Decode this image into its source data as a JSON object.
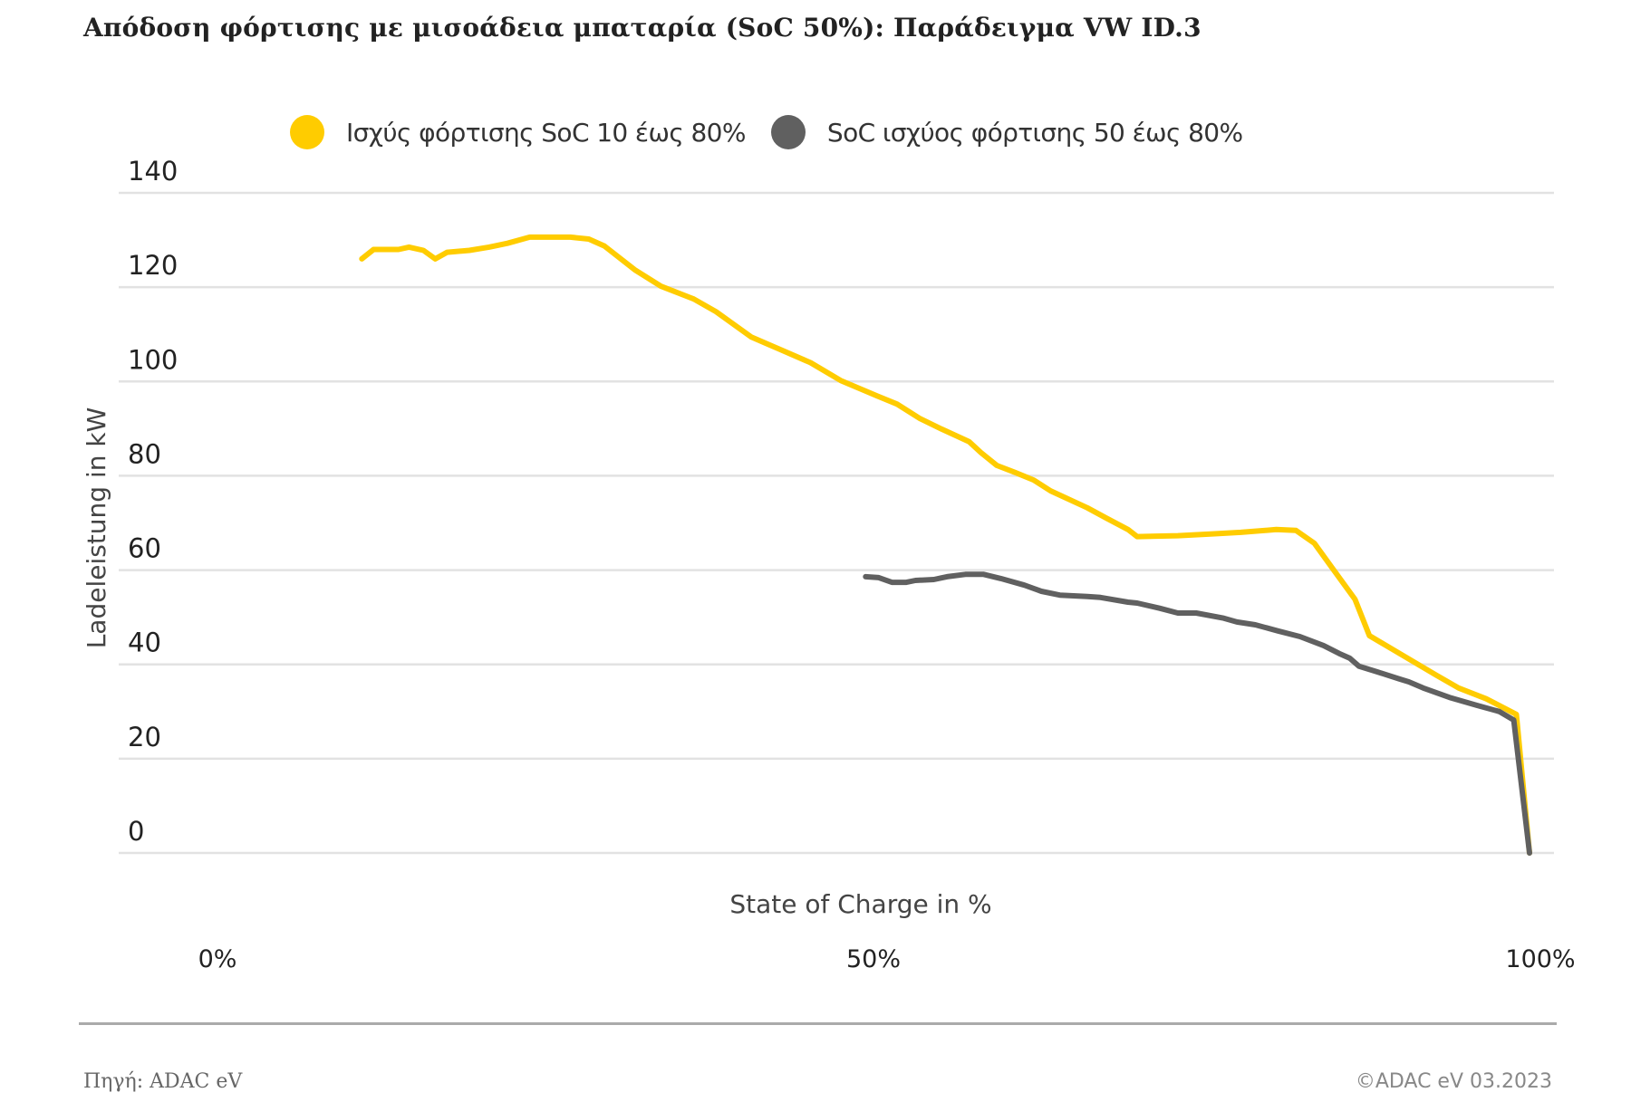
{
  "chart_data": {
    "type": "line",
    "title": "Απόδοση φόρτισης με μισοάδεια μπαταρία (SoC 50%): Παράδειγμα VW ID.3",
    "xlabel": "State of Charge in %",
    "ylabel": "Ladeleistung in kW",
    "xlim": [
      0,
      100
    ],
    "ylim": [
      0,
      140
    ],
    "yticks": [
      0,
      20,
      40,
      60,
      80,
      100,
      120,
      140
    ],
    "ytick_labels": [
      "0",
      "20",
      "40",
      "60",
      "80",
      "100",
      "120",
      "140"
    ],
    "xticks": [
      0,
      50,
      100
    ],
    "xtick_labels": [
      "0%",
      "50%",
      "100%"
    ],
    "grid": "horizontal",
    "legend_position": "top",
    "series": [
      {
        "name": "Ισχύς φόρτισης SoC 10 έως 80%",
        "color": "#FFCC00",
        "x": [
          11,
          11.9,
          13.8,
          14.6,
          15.7,
          16.6,
          17.5,
          19.2,
          20.7,
          22.1,
          23.8,
          26.9,
          28.3,
          29.5,
          31.8,
          33.8,
          36.3,
          38,
          40.7,
          42.8,
          45.2,
          47.5,
          50.3,
          51.8,
          53.5,
          55.2,
          57,
          57.3,
          58.2,
          59.4,
          60.8,
          62.2,
          63.5,
          66.3,
          67.7,
          69.4,
          70.1,
          73.2,
          76,
          78,
          80.7,
          82.2,
          83.6,
          85,
          86.7,
          87.8,
          90.1,
          92.9,
          94.6,
          96.7,
          99,
          100
        ],
        "y": [
          126,
          128,
          128,
          128.5,
          127.8,
          126,
          127.4,
          127.8,
          128.5,
          129.3,
          130.6,
          130.6,
          130.2,
          128.7,
          123.7,
          120.2,
          117.5,
          114.8,
          109.4,
          106.9,
          104,
          100.2,
          96.9,
          95.2,
          92.2,
          89.9,
          87.6,
          87.2,
          84.9,
          82.2,
          80.7,
          79.1,
          76.8,
          73.2,
          71.1,
          68.6,
          67.1,
          67.3,
          67.7,
          68,
          68.6,
          68.4,
          65.7,
          60.3,
          53.8,
          46.1,
          42.3,
          37.7,
          35,
          32.7,
          29.4,
          0
        ]
      },
      {
        "name": "SoC ισχύος φόρτισης 50 έως 80%",
        "color": "#606060",
        "x": [
          49.4,
          50.4,
          51.4,
          52.5,
          53.2,
          54.6,
          55.6,
          57,
          58.4,
          59.7,
          61.5,
          62.8,
          64.2,
          66.3,
          67.3,
          69.4,
          70.1,
          71.8,
          73.2,
          74.6,
          76.7,
          77.7,
          79.1,
          80.8,
          82.5,
          84.3,
          85.5,
          86.3,
          87,
          88.4,
          90.1,
          90.8,
          91.9,
          93.9,
          96,
          97.7,
          98.8,
          100
        ],
        "y": [
          58.6,
          58.4,
          57.4,
          57.4,
          57.8,
          58,
          58.6,
          59.1,
          59.1,
          58.2,
          56.8,
          55.5,
          54.7,
          54.4,
          54.2,
          53.2,
          53,
          51.9,
          50.9,
          50.9,
          49.8,
          49,
          48.4,
          47.1,
          45.9,
          44,
          42.3,
          41.3,
          39.6,
          38.4,
          36.9,
          36.3,
          35,
          33,
          31.3,
          30,
          28.2,
          0
        ]
      }
    ]
  },
  "legend": {
    "items": [
      {
        "label": "Ισχύς φόρτισης SoC 10 έως 80%",
        "color": "#FFCC00"
      },
      {
        "label": "SoC ισχύος φόρτισης 50 έως 80%",
        "color": "#606060"
      }
    ]
  },
  "footer": {
    "source": "Πηγή: ADAC eV",
    "copyright": "©ADAC eV 03.2023"
  },
  "colors": {
    "grid": "#e2e2e2",
    "divider": "#aaaaaa"
  }
}
